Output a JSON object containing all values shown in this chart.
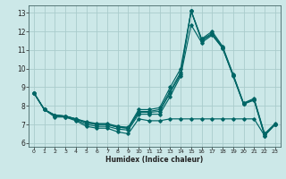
{
  "xlabel": "Humidex (Indice chaleur)",
  "bg_color": "#cce8e8",
  "line_color": "#006666",
  "grid_color": "#aacccc",
  "grid_color2": "#99bbbb",
  "xlim": [
    -0.5,
    23.5
  ],
  "ylim": [
    5.8,
    13.4
  ],
  "xticks": [
    0,
    1,
    2,
    3,
    4,
    5,
    6,
    7,
    8,
    9,
    10,
    11,
    12,
    13,
    14,
    15,
    16,
    17,
    18,
    19,
    20,
    21,
    22,
    23
  ],
  "yticks": [
    6,
    7,
    8,
    9,
    10,
    11,
    12,
    13
  ],
  "lines": [
    {
      "x": [
        0,
        1,
        2,
        3,
        4,
        5,
        6,
        7,
        8,
        9,
        10,
        11,
        12,
        13,
        14,
        15,
        16,
        17,
        18,
        19,
        20,
        21,
        22,
        23
      ],
      "y": [
        8.7,
        7.8,
        7.4,
        7.4,
        7.2,
        6.9,
        6.8,
        6.8,
        6.6,
        6.5,
        7.3,
        7.2,
        7.2,
        7.3,
        7.3,
        7.3,
        7.3,
        7.3,
        7.3,
        7.3,
        7.3,
        7.3,
        6.4,
        7.0
      ]
    },
    {
      "x": [
        0,
        1,
        2,
        3,
        4,
        5,
        6,
        7,
        8,
        9,
        10,
        11,
        12,
        13,
        14,
        15,
        16,
        17,
        18,
        19,
        20,
        21,
        22,
        23
      ],
      "y": [
        8.7,
        7.8,
        7.45,
        7.4,
        7.25,
        7.0,
        6.9,
        6.9,
        6.75,
        6.7,
        7.55,
        7.55,
        7.55,
        8.5,
        9.6,
        12.35,
        11.4,
        11.8,
        11.1,
        9.6,
        8.1,
        8.3,
        6.4,
        7.0
      ]
    },
    {
      "x": [
        0,
        1,
        2,
        3,
        4,
        5,
        6,
        7,
        8,
        9,
        10,
        11,
        12,
        13,
        14,
        15,
        16,
        17,
        18,
        19,
        20,
        21,
        22,
        23
      ],
      "y": [
        8.7,
        7.8,
        7.5,
        7.45,
        7.3,
        7.1,
        7.0,
        7.0,
        6.85,
        6.8,
        7.65,
        7.65,
        7.7,
        8.7,
        9.7,
        13.1,
        11.5,
        11.85,
        11.1,
        9.65,
        8.1,
        8.35,
        6.45,
        7.0
      ]
    },
    {
      "x": [
        0,
        1,
        2,
        3,
        4,
        5,
        6,
        7,
        8,
        9,
        10,
        11,
        12,
        13,
        14,
        15,
        16,
        17,
        18,
        19,
        20,
        21,
        22,
        23
      ],
      "y": [
        8.7,
        7.8,
        7.5,
        7.45,
        7.3,
        7.1,
        7.0,
        7.0,
        6.85,
        6.8,
        7.7,
        7.7,
        7.8,
        8.8,
        9.8,
        13.1,
        11.55,
        11.9,
        11.15,
        9.65,
        8.1,
        8.35,
        6.45,
        7.0
      ]
    },
    {
      "x": [
        0,
        1,
        2,
        3,
        4,
        5,
        6,
        7,
        8,
        9,
        10,
        11,
        12,
        13,
        14,
        15,
        16,
        17,
        18,
        19,
        20,
        21,
        22,
        23
      ],
      "y": [
        8.7,
        7.8,
        7.5,
        7.45,
        7.3,
        7.15,
        7.05,
        7.05,
        6.9,
        6.85,
        7.8,
        7.8,
        7.9,
        9.0,
        10.0,
        13.1,
        11.6,
        12.0,
        11.2,
        9.7,
        8.15,
        8.4,
        6.5,
        7.05
      ]
    }
  ]
}
